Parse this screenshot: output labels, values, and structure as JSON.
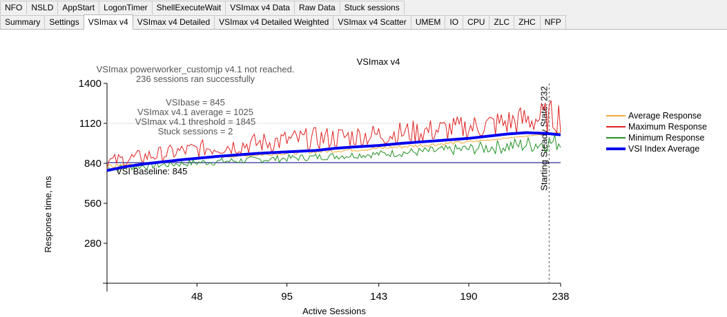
{
  "tabs_row1": [
    "NFO",
    "NSLD",
    "AppStart",
    "LogonTimer",
    "ShellExecuteWait",
    "VSImax v4 Data",
    "Raw Data",
    "Stuck sessions"
  ],
  "tabs_row2": [
    "Summary",
    "Settings",
    "VSImax v4",
    "VSImax v4 Detailed",
    "VSImax v4 Detailed Weighted",
    "VSImax v4 Scatter",
    "UMEM",
    "IO",
    "CPU",
    "ZLC",
    "ZHC",
    "NFP"
  ],
  "active_tab": "VSImax v4",
  "chart_data": {
    "type": "line",
    "title": "VSImax v4",
    "xlabel": "Active Sessions",
    "ylabel": "Response time, ms",
    "xlim": [
      1,
      238
    ],
    "ylim": [
      0,
      1400
    ],
    "x_ticks": [
      48,
      95,
      143,
      190,
      238
    ],
    "y_ticks": [
      280,
      560,
      840,
      1120,
      1400
    ],
    "annotations": {
      "status_line1": "VSImax powerworker_customjp v4.1 not reached.",
      "status_line2": "236 sessions ran successfully",
      "vsibase": "VSIbase = 845",
      "vsimax_avg": "VSImax v4.1 average = 1025",
      "vsimax_threshold": "VSImax v4.1 threshold = 1845",
      "stuck": "Stuck sessions = 2",
      "baseline_label": "VSI Baseline: 845",
      "steady_state_label": "Starting Steady State: 232"
    },
    "baseline_value": 845,
    "steady_state_x": 232,
    "legend_position": "right",
    "series": [
      {
        "name": "Average Response",
        "color": "#f0a830"
      },
      {
        "name": "Maximum Response",
        "color": "#e02020"
      },
      {
        "name": "Minimum Response",
        "color": "#209020"
      },
      {
        "name": "VSI Index Average",
        "color": "#0000ee"
      }
    ],
    "vsi_index_average": {
      "x": [
        1,
        10,
        20,
        30,
        40,
        48,
        60,
        70,
        80,
        95,
        110,
        120,
        130,
        143,
        155,
        165,
        175,
        190,
        200,
        210,
        220,
        230,
        238
      ],
      "y": [
        790,
        815,
        835,
        850,
        865,
        875,
        890,
        900,
        910,
        920,
        930,
        945,
        955,
        965,
        980,
        990,
        1000,
        1015,
        1030,
        1045,
        1055,
        1050,
        1040
      ]
    },
    "max_response_range": {
      "x": [
        1,
        48,
        95,
        143,
        190,
        238
      ],
      "y": [
        [
          800,
          900
        ],
        [
          880,
          1000
        ],
        [
          920,
          1080
        ],
        [
          960,
          1120
        ],
        [
          1000,
          1180
        ],
        [
          1050,
          1300
        ]
      ]
    },
    "min_response_range": {
      "x": [
        1,
        48,
        95,
        143,
        190,
        238
      ],
      "y": [
        [
          780,
          830
        ],
        [
          820,
          870
        ],
        [
          850,
          900
        ],
        [
          880,
          930
        ],
        [
          900,
          980
        ],
        [
          920,
          1060
        ]
      ]
    }
  }
}
